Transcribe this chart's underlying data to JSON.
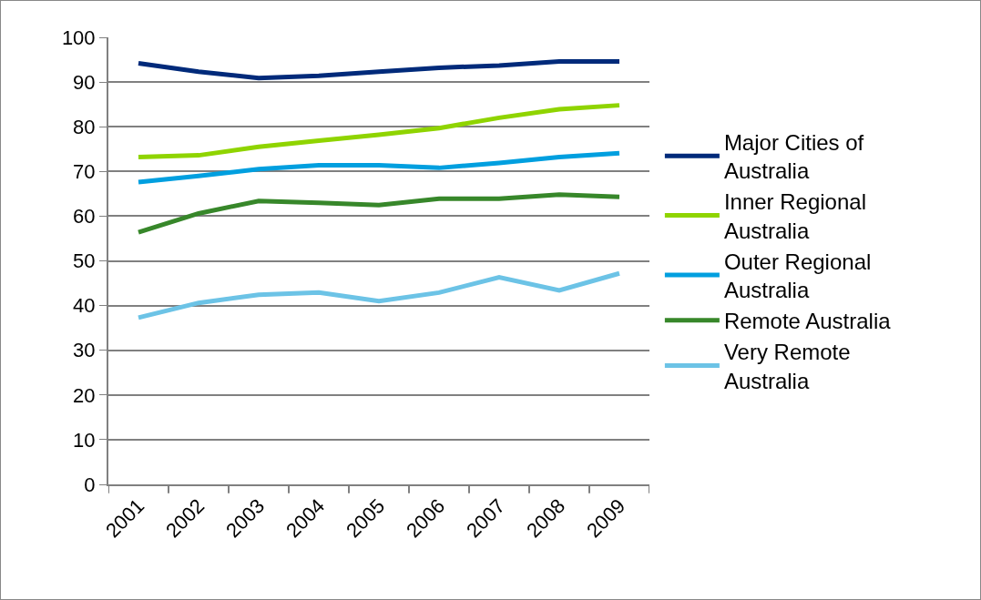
{
  "chart_data": {
    "type": "line",
    "categories": [
      "2001",
      "2002",
      "2003",
      "2004",
      "2005",
      "2006",
      "2007",
      "2008",
      "2009"
    ],
    "series": [
      {
        "name": "Major Cities of Australia",
        "color": "#002a7a",
        "values": [
          94.2,
          92.3,
          90.9,
          91.4,
          92.3,
          93.2,
          93.7,
          94.6,
          94.6
        ]
      },
      {
        "name": "Inner Regional Australia",
        "color": "#8fd400",
        "values": [
          73.2,
          73.6,
          75.5,
          76.9,
          78.2,
          79.7,
          82,
          83.9,
          84.8
        ]
      },
      {
        "name": "Outer Regional Australia",
        "color": "#009fdf",
        "values": [
          67.6,
          69,
          70.5,
          71.4,
          71.4,
          70.8,
          71.9,
          73.2,
          74.1
        ]
      },
      {
        "name": "Remote Australia",
        "color": "#37872a",
        "values": [
          56.4,
          60.6,
          63.4,
          63,
          62.5,
          63.9,
          63.9,
          64.8,
          64.3
        ]
      },
      {
        "name": "Very Remote Australia",
        "color": "#6cc3e6",
        "values": [
          37.3,
          40.6,
          42.4,
          42.9,
          41,
          42.9,
          46.3,
          43.4,
          47.2
        ]
      }
    ],
    "ylim": [
      0,
      100
    ],
    "yticks": [
      0,
      10,
      20,
      30,
      40,
      50,
      60,
      70,
      80,
      90,
      100
    ],
    "grid": "y",
    "legend": "right",
    "marker": "none",
    "line_style": "solid"
  }
}
